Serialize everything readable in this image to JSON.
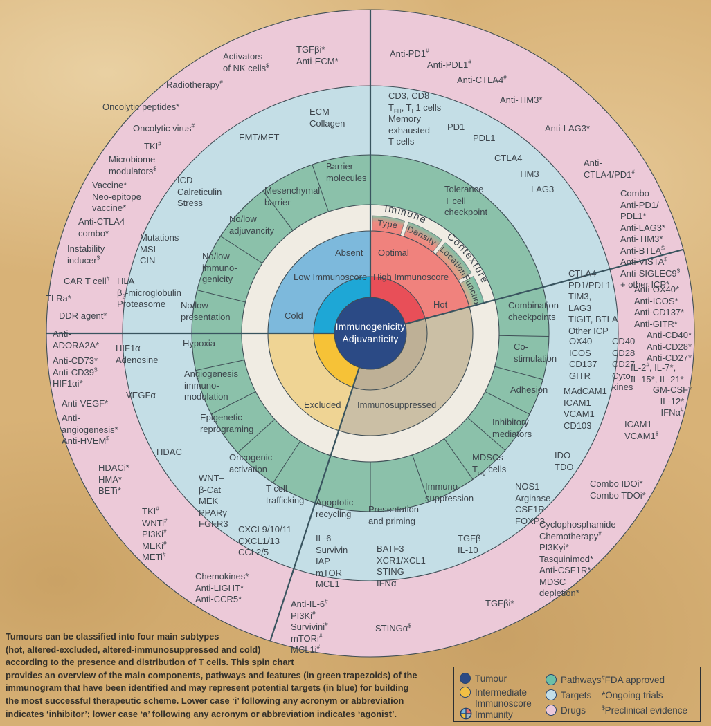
{
  "center": {
    "line1": "Immunogenicity",
    "line2": "Adjuvanticity"
  },
  "immune_contexture": {
    "word1": "Immune",
    "word2": "Contexture",
    "segments": [
      "Type",
      "Density",
      "Location",
      "Function"
    ]
  },
  "phenotypes": [
    "Absent",
    "Optimal",
    "Low Immunoscore",
    "High Immunoscore",
    "Cold",
    "Hot",
    "Excluded",
    "Immunosuppressed"
  ],
  "pathways": [
    "Tolerance\nT cell\ncheckpoint",
    "Combination\ncheckpoints",
    "Co-\nstimulation",
    "Adhesion",
    "Inhibitory\nmediators",
    "MDSCs\nT_{reg} cells",
    "Immuno-\nsuppression",
    "Presentation\nand priming",
    "Apoptotic\nrecycling",
    "T cell\ntrafficking",
    "Oncogenic\nactivation",
    "Epigenetic\nreprograming",
    "Angiogenesis\nimmuno-\nmodulation",
    "Hypoxia",
    "No/low\npresentation",
    "No/low\nimmuno-\ngenicity",
    "No/low\nadjuvancity",
    "Mesenchymal\nbarrier",
    "Barrier\nmolecules"
  ],
  "targets": [
    "ECM\nCollagen",
    "EMT/MET",
    "CD3, CD8\nT_{FH}, T_{H}1 cells\nMemory\nexhausted\nT cells",
    "PD1",
    "PDL1",
    "CTLA4",
    "TIM3",
    "LAG3",
    "CTLA4\nPD1/PDL1\nTIM3,\nLAG3\nTIGIT, BTLA\nOther ICP",
    "OX40\nICOS\nCD137\nGITR",
    "CD40\nCD28\nCD27\nCyto-\nkines",
    "MAdCAM1\nICAM1\nVCAM1\nCD103",
    "IDO\nTDO",
    "NOS1\nArginase\nCSF1R\nFOXP3",
    "TGFβ\nIL-10",
    "BATF3\nXCR1/XCL1\nSTING\nIFNα",
    "IL-6\nSurvivin\nIAP\nmTOR\nMCL1",
    "CXCL9/10/11\nCXCL1/13\nCCL2/5",
    "WNT–\nβ-Cat\nMEK\nPPARγ\nFGFR3",
    "HDAC",
    "VEGFα",
    "HIF1α\nAdenosine",
    "HLA\nβ_{2}-microglobulin\nProteasome",
    "Mutations\nMSI\nCIN",
    "ICD\nCalreticulin\nStress"
  ],
  "drugs": [
    "Activators\nof NK cells^{$}",
    "TGFβi*\nAnti-ECM*",
    "Anti-PD1^{#}",
    "Anti-PDL1^{#}",
    "Anti-CTLA4^{#}",
    "Anti-TIM3*",
    "Anti-LAG3*",
    "Anti-\nCTLA4/PD1^{#}",
    "Combo\nAnti-PD1/\nPDL1*\nAnti-LAG3*\nAnti-TIM3*\nAnti-BTLA^{$}\nAnti-VISTA^{$}\nAnti-SIGLEC9^{$}\n+ other ICP*",
    "Anti-OX40*\nAnti-ICOS*\nAnti-CD137*\nAnti-GITR*",
    "Anti-CD40*\nAnti-CD28*\nAnti-CD27*",
    "IL-2^{#}, IL-7*,\nIL-15*, IL-21*",
    "GM-CSF*\nIL-12*\nIFNα^{#}",
    "ICAM1\nVCAM1^{$}",
    "Combo IDOi*\nCombo TDOi*",
    "Cyclophosphamide\nChemotherapy^{#}\nPI3Kγi*\nTasquinimod*\nAnti-CSF1R*\nMDSC\ndepletion*",
    "TGFβi*",
    "STINGα^{$}",
    "Anti-IL-6^{#}\nPI3Ki^{#}\nSurvivini^{#}\nmTORi^{#}\nMCL1i^{#}",
    "Chemokines*\nAnti-LIGHT*\nAnti-CCR5*",
    "TKI^{#}\nWNTi^{#}\nPI3Ki^{#}\nMEKi^{#}\nMETi^{#}",
    "HDACi*\nHMA*\nBETi*",
    "Anti-VEGF*",
    "Anti-\nangiogenesis*\nAnti-HVEM^{$}",
    "Anti-\nADORA2A*",
    "Anti-CD73*\nAnti-CD39^{$}\nHIF1αi*",
    "DDR agent*",
    "TLRa*",
    "CAR T cell^{#}",
    "Instability\ninducer^{$}",
    "Anti-CTLA4\ncombo*",
    "Vaccine*\nNeo-epitope\nvaccine*",
    "Microbiome\nmodulators^{$}",
    "TKI^{#}",
    "Oncolytic virus^{#}",
    "Oncolytic peptides*",
    "Radiotherapy^{#}"
  ],
  "caption": {
    "lines": [
      "Tumours can be classified into four main subtypes",
      "(hot, altered-excluded, altered-immunosuppressed and cold)",
      "according to the presence and distribution of T cells. This spin chart",
      "provides an overview of the main components, pathways and features (in green trapezoids) of the",
      "immunogram that have been identified and may represent potential targets (in blue) for building",
      "the most successful therapeutic scheme. Lower case ‘i’ following any acronym or abbreviation",
      "indicates ‘inhibitor’; lower case ‘a’ following any acronym or abbreviation indicates ‘agonist’."
    ]
  },
  "legend": {
    "groups": [
      {
        "items": [
          {
            "icon": "circle",
            "color": "#2b4a85",
            "label": "Tumour"
          },
          {
            "icon": "circle",
            "color": "#f1bf44",
            "label": "Intermediate\nImmunoscore"
          },
          {
            "icon": "quartered",
            "color": "",
            "label": "Immunity"
          }
        ]
      },
      {
        "items": [
          {
            "icon": "circle",
            "color": "#6cbfa7",
            "label": "Pathways"
          },
          {
            "icon": "circle",
            "color": "#c2dee8",
            "label": "Targets"
          },
          {
            "icon": "circle",
            "color": "#ecc9d9",
            "label": "Drugs"
          }
        ]
      }
    ],
    "markers": [
      "^{#}FDA approved",
      "*Ongoing trials",
      "^{$}Preclinical evidence"
    ]
  },
  "colors": {
    "background": "#d8b277",
    "drugs_ring": "#ecc9d8",
    "targets_ring": "#c4dee6",
    "pathways_ring": "#8bc1aa",
    "inner_white": "#f0ece3",
    "hot": "#e84f58",
    "hot_light": "#f0827d",
    "cold": "#1ea7d6",
    "cold_light": "#7db9dc",
    "excluded": "#f6c237",
    "excluded_light": "#efd494",
    "immunosuppressed": "#beb096",
    "immunosuppressed_light": "#cbbfa5",
    "tumour_core": "#2b4a85",
    "outline": "#3f4e56"
  }
}
